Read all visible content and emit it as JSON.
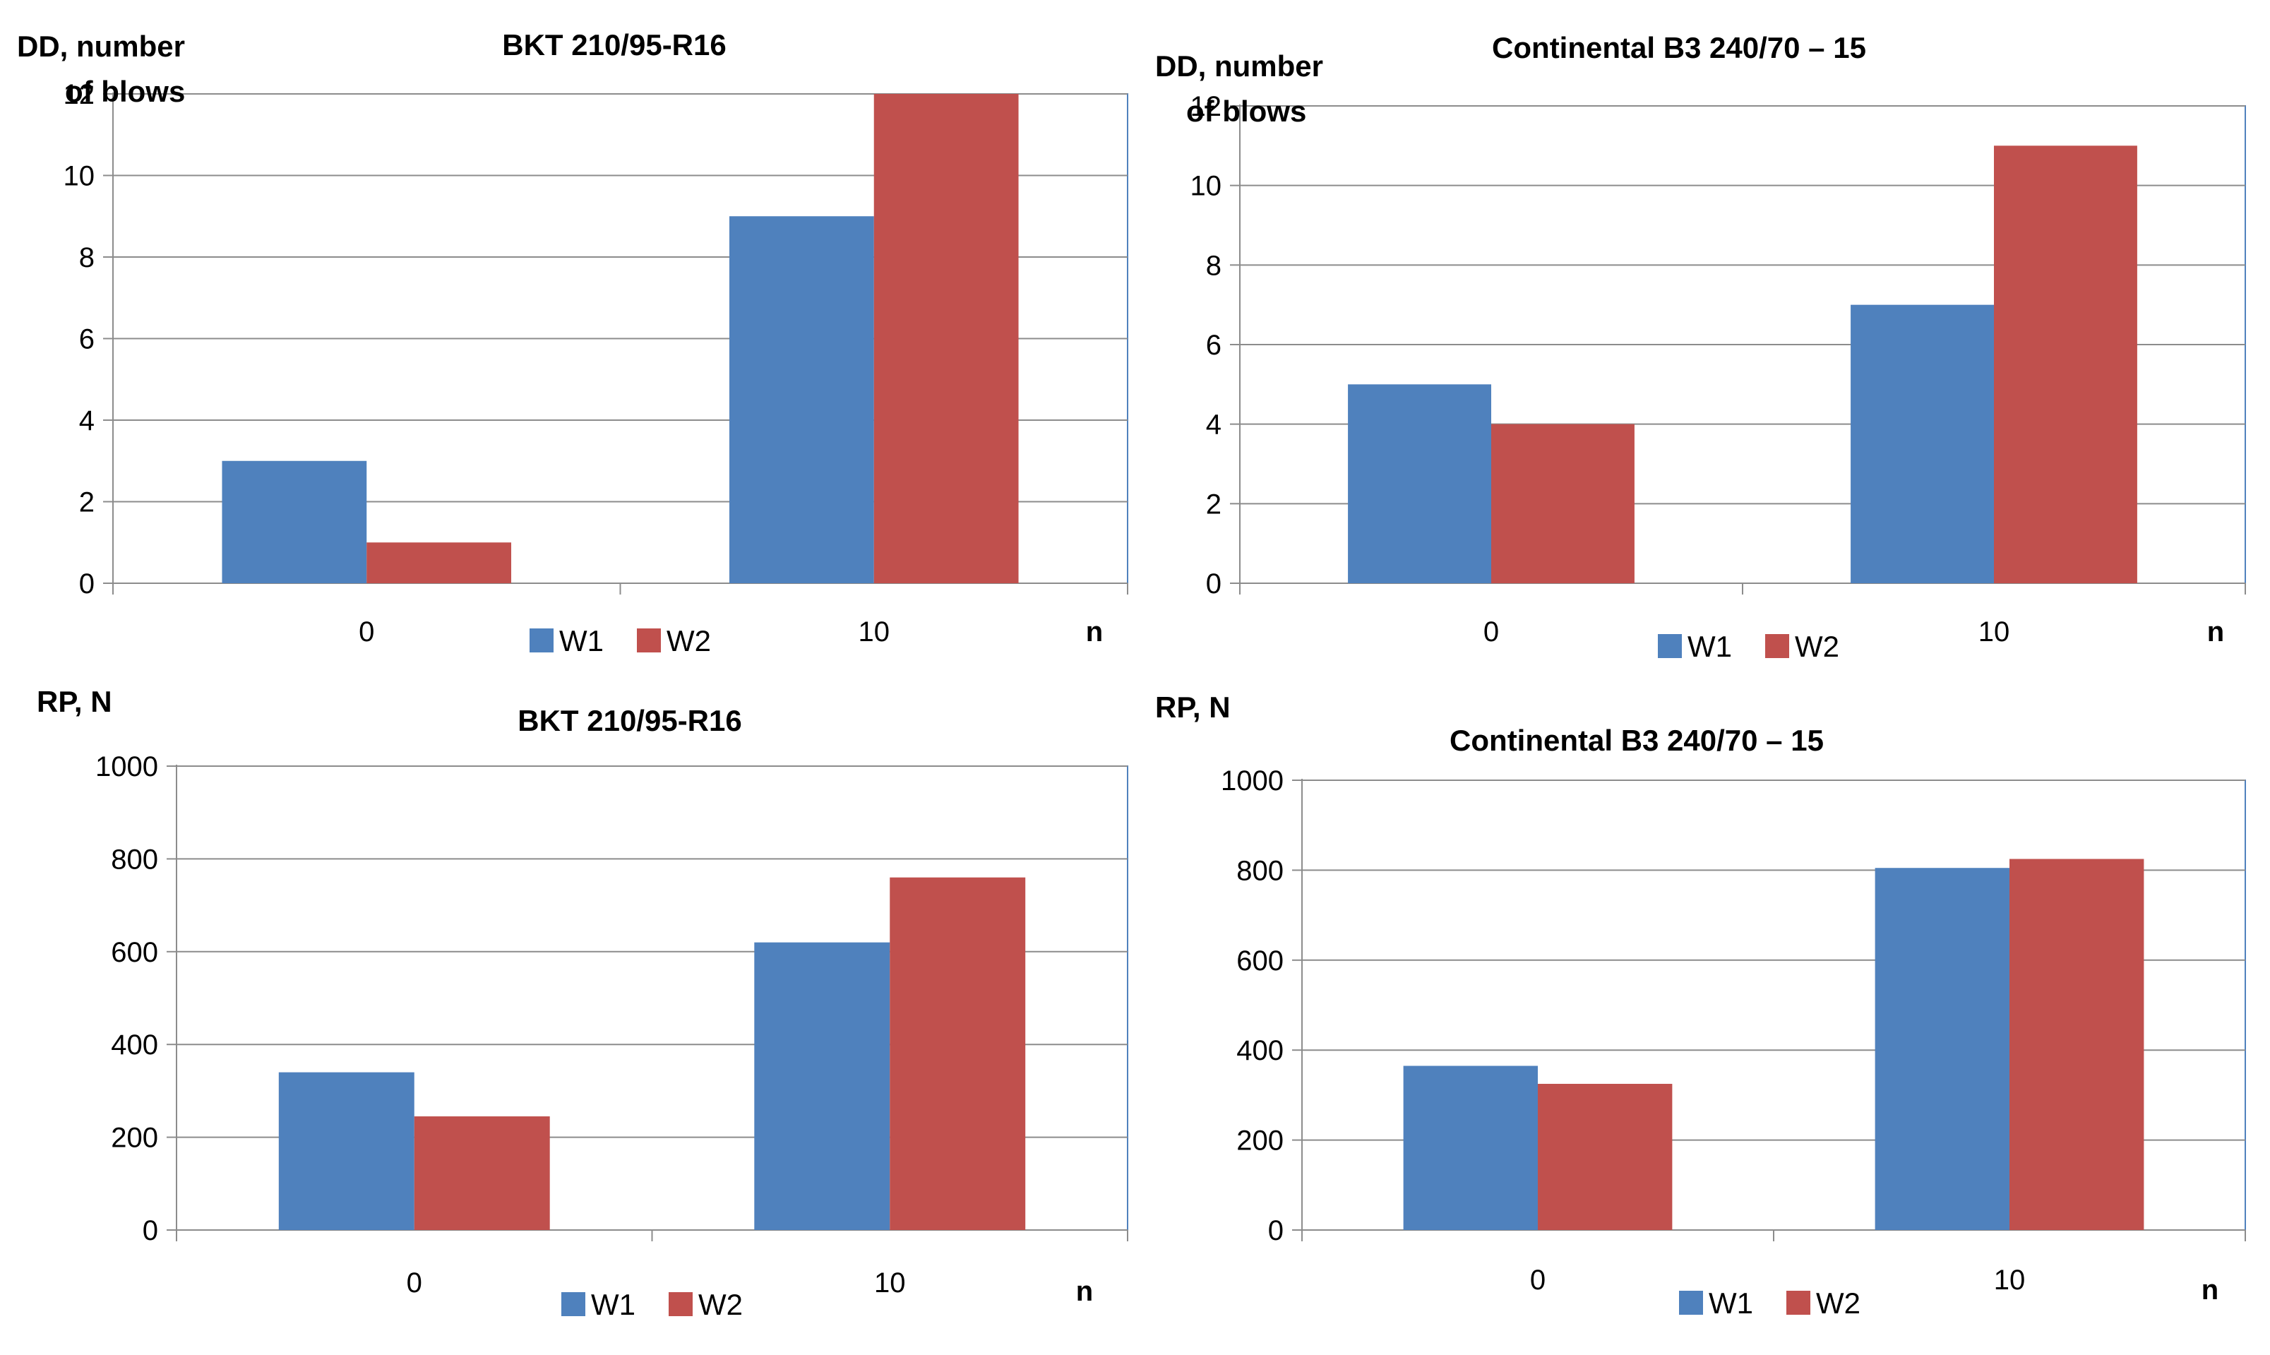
{
  "chart_data": [
    {
      "type": "bar",
      "title": "BKT 210/95-R16",
      "ylabel": [
        "DD,  number",
        "of blows"
      ],
      "xlabel": "n",
      "categories": [
        "0",
        "10"
      ],
      "ylim": [
        0,
        12
      ],
      "yticks": [
        0,
        2,
        4,
        6,
        8,
        10,
        12
      ],
      "grid": true,
      "legend": "bottom",
      "series": [
        {
          "name": "W1",
          "color": "#4f81bd",
          "values": [
            3,
            9
          ]
        },
        {
          "name": "W2",
          "color": "#c0504d",
          "values": [
            1,
            12
          ]
        }
      ]
    },
    {
      "type": "bar",
      "title": "Continental B3 240/70 – 15",
      "ylabel": [
        "DD,  number",
        "of blows"
      ],
      "xlabel": "n",
      "categories": [
        "0",
        "10"
      ],
      "ylim": [
        0,
        12
      ],
      "yticks": [
        0,
        2,
        4,
        6,
        8,
        10,
        12
      ],
      "grid": true,
      "legend": "bottom",
      "series": [
        {
          "name": "W1",
          "color": "#4f81bd",
          "values": [
            5,
            7
          ]
        },
        {
          "name": "W2",
          "color": "#c0504d",
          "values": [
            4,
            11
          ]
        }
      ]
    },
    {
      "type": "bar",
      "title": "BKT 210/95-R16",
      "ylabel": [
        "RP, N"
      ],
      "xlabel": "n",
      "categories": [
        "0",
        "10"
      ],
      "ylim": [
        0,
        1000
      ],
      "yticks": [
        0,
        200,
        400,
        600,
        800,
        1000
      ],
      "grid": true,
      "legend": "bottom",
      "series": [
        {
          "name": "W1",
          "color": "#4f81bd",
          "values": [
            340,
            620
          ]
        },
        {
          "name": "W2",
          "color": "#c0504d",
          "values": [
            245,
            760
          ]
        }
      ]
    },
    {
      "type": "bar",
      "title": "Continental B3 240/70 – 15",
      "ylabel": [
        "RP,  N"
      ],
      "xlabel": "n",
      "categories": [
        "0",
        "10"
      ],
      "ylim": [
        0,
        1000
      ],
      "yticks": [
        0,
        200,
        400,
        600,
        800,
        1000
      ],
      "grid": true,
      "legend": "bottom",
      "series": [
        {
          "name": "W1",
          "color": "#4f81bd",
          "values": [
            365,
            805
          ]
        },
        {
          "name": "W2",
          "color": "#c0504d",
          "values": [
            325,
            825
          ]
        }
      ]
    }
  ]
}
